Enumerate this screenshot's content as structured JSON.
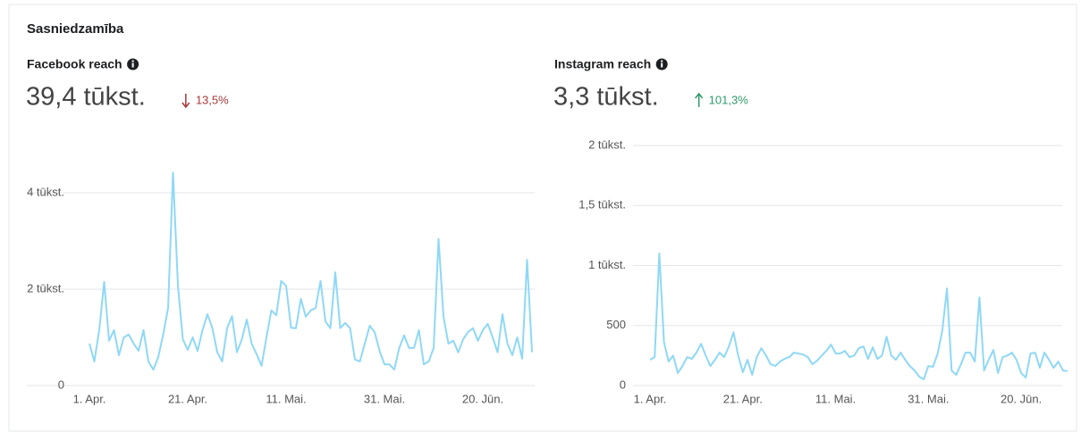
{
  "header": {
    "title": "Sasniedzamība"
  },
  "chart_data": [
    {
      "type": "line",
      "title": "Facebook reach",
      "value_text": "39,4 tūkst.",
      "change": "13,5%",
      "change_direction": "down",
      "change_color": "#a8393b",
      "color": "#8fd8f6",
      "grid": true,
      "categories": [
        "1. Apr.",
        null,
        null,
        null,
        null,
        null,
        null,
        null,
        null,
        null,
        null,
        null,
        null,
        null,
        null,
        null,
        null,
        null,
        null,
        null,
        "21. Apr.",
        null,
        null,
        null,
        null,
        null,
        null,
        null,
        null,
        null,
        null,
        null,
        null,
        null,
        null,
        null,
        null,
        null,
        null,
        null,
        "11. Mai.",
        null,
        null,
        null,
        null,
        null,
        null,
        null,
        null,
        null,
        null,
        null,
        null,
        null,
        null,
        null,
        null,
        null,
        null,
        null,
        "31. Mai.",
        null,
        null,
        null,
        null,
        null,
        null,
        null,
        null,
        null,
        null,
        null,
        null,
        null,
        null,
        null,
        null,
        null,
        null,
        null,
        "20. Jūn.",
        null,
        null,
        null,
        null,
        null,
        null,
        null,
        null,
        null,
        null
      ],
      "values": [
        870,
        500,
        1150,
        2150,
        930,
        1150,
        630,
        1000,
        1060,
        870,
        720,
        1150,
        500,
        330,
        590,
        1060,
        1610,
        4420,
        2070,
        960,
        740,
        1000,
        720,
        1150,
        1480,
        1190,
        690,
        500,
        1190,
        1440,
        690,
        960,
        1370,
        870,
        650,
        410,
        1000,
        1560,
        1460,
        2170,
        2070,
        1200,
        1190,
        1800,
        1430,
        1560,
        1610,
        2170,
        1330,
        1190,
        2350,
        1190,
        1300,
        1190,
        540,
        500,
        870,
        1240,
        1110,
        720,
        440,
        440,
        330,
        780,
        1040,
        780,
        780,
        1150,
        440,
        500,
        780,
        3040,
        1430,
        870,
        930,
        690,
        960,
        1110,
        1190,
        930,
        1150,
        1280,
        1000,
        690,
        1480,
        870,
        630,
        1000,
        560,
        2610,
        690
      ],
      "ylim": [
        0,
        4500
      ],
      "yticks": [
        0,
        {
          "value": 2000,
          "label": "2 tūkst."
        },
        {
          "value": 4000,
          "label": "4 tūkst."
        }
      ]
    },
    {
      "type": "line",
      "title": "Instagram reach",
      "value_text": "3,3 tūkst.",
      "change": "101,3%",
      "change_direction": "up",
      "change_color": "#2e9a6a",
      "color": "#8fd8f6",
      "grid": true,
      "categories": [
        "1. Apr.",
        null,
        null,
        null,
        null,
        null,
        null,
        null,
        null,
        null,
        null,
        null,
        null,
        null,
        null,
        null,
        null,
        null,
        null,
        null,
        "21. Apr.",
        null,
        null,
        null,
        null,
        null,
        null,
        null,
        null,
        null,
        null,
        null,
        null,
        null,
        null,
        null,
        null,
        null,
        null,
        null,
        "11. Mai.",
        null,
        null,
        null,
        null,
        null,
        null,
        null,
        null,
        null,
        null,
        null,
        null,
        null,
        null,
        null,
        null,
        null,
        null,
        null,
        "31. Mai.",
        null,
        null,
        null,
        null,
        null,
        null,
        null,
        null,
        null,
        null,
        null,
        null,
        null,
        null,
        null,
        null,
        null,
        null,
        null,
        "20. Jūn.",
        null,
        null,
        null,
        null,
        null,
        null,
        null,
        null,
        null,
        null
      ],
      "values": [
        215,
        237,
        1100,
        363,
        200,
        250,
        104,
        163,
        237,
        222,
        274,
        348,
        250,
        163,
        215,
        274,
        237,
        326,
        444,
        250,
        111,
        215,
        89,
        237,
        311,
        250,
        178,
        163,
        200,
        222,
        237,
        274,
        267,
        259,
        237,
        178,
        207,
        250,
        289,
        341,
        267,
        267,
        289,
        237,
        250,
        311,
        326,
        222,
        319,
        222,
        250,
        407,
        250,
        215,
        274,
        215,
        163,
        126,
        74,
        52,
        163,
        156,
        267,
        459,
        808,
        126,
        89,
        178,
        274,
        274,
        200,
        734,
        126,
        215,
        296,
        104,
        237,
        250,
        274,
        215,
        104,
        67,
        267,
        274,
        148,
        274,
        215,
        148,
        200,
        126,
        120
      ],
      "ylim": [
        0,
        2000
      ],
      "yticks": [
        0,
        500,
        {
          "value": 1000,
          "label": "1 tūkst."
        },
        {
          "value": 1500,
          "label": "1,5 tūkst."
        },
        {
          "value": 2000,
          "label": "2 tūkst."
        }
      ]
    }
  ]
}
